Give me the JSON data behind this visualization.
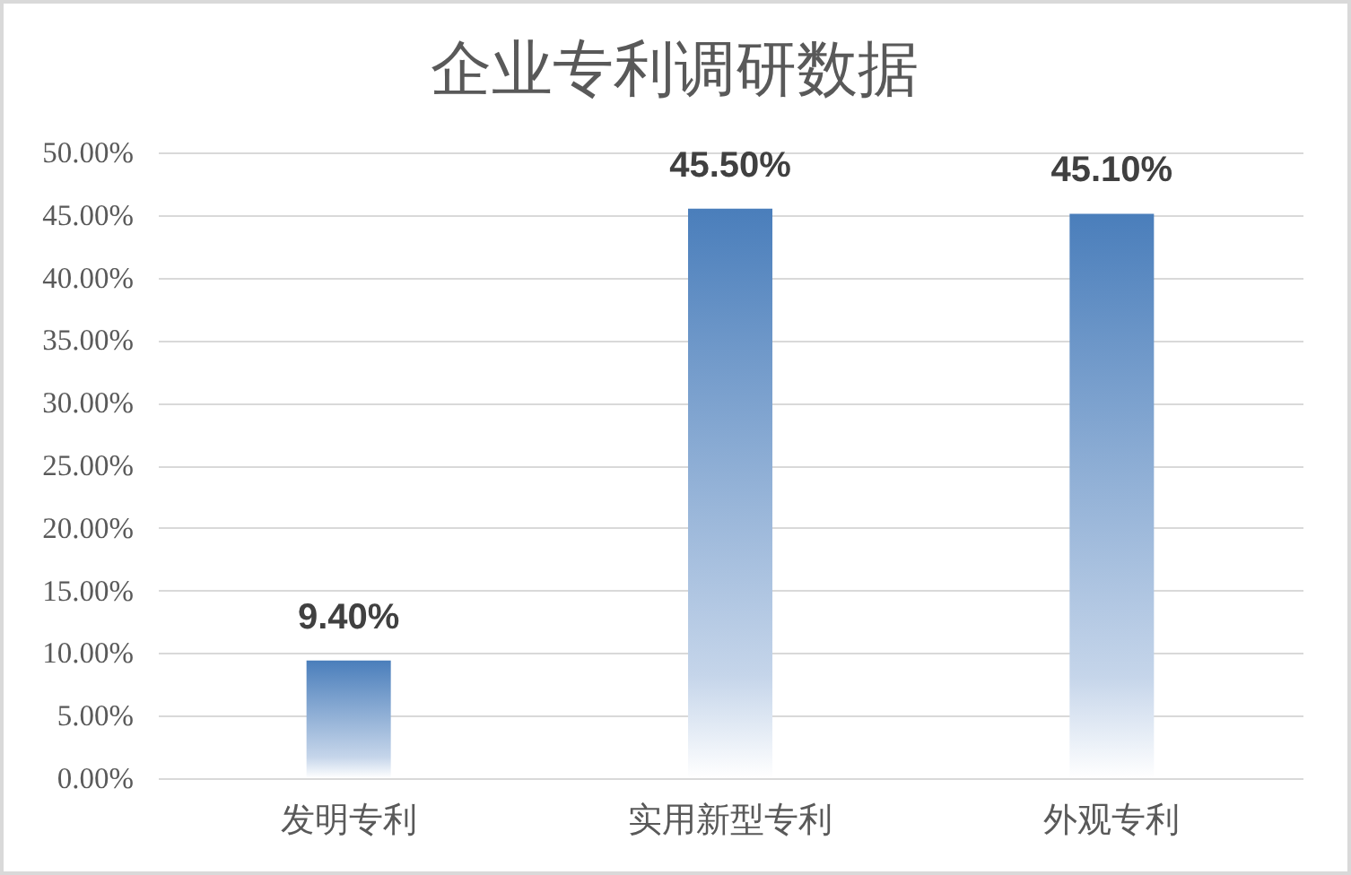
{
  "chart_data": {
    "type": "bar",
    "title": "企业专利调研数据",
    "categories": [
      "发明专利",
      "实用新型专利",
      "外观专利"
    ],
    "values": [
      9.4,
      45.5,
      45.1
    ],
    "value_labels": [
      "9.40%",
      "45.50%",
      "45.10%"
    ],
    "color": "#4a7ebb",
    "ylim": [
      0,
      50
    ],
    "yticks": [
      {
        "value": 0,
        "label": "0.00%"
      },
      {
        "value": 5,
        "label": "5.00%"
      },
      {
        "value": 10,
        "label": "10.00%"
      },
      {
        "value": 15,
        "label": "15.00%"
      },
      {
        "value": 20,
        "label": "20.00%"
      },
      {
        "value": 25,
        "label": "25.00%"
      },
      {
        "value": 30,
        "label": "30.00%"
      },
      {
        "value": 35,
        "label": "35.00%"
      },
      {
        "value": 40,
        "label": "40.00%"
      },
      {
        "value": 45,
        "label": "45.00%"
      },
      {
        "value": 50,
        "label": "50.00%"
      }
    ],
    "grid": "y"
  }
}
